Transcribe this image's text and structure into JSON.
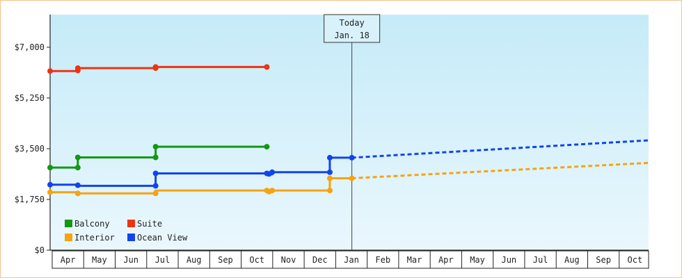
{
  "chart_data": {
    "type": "line",
    "title": "",
    "xlabel": "",
    "ylabel": "",
    "ylim": [
      0,
      7000
    ],
    "y_ticks": [
      "$0",
      "$1,750",
      "$3,500",
      "$5,250",
      "$7,000"
    ],
    "y_tick_values": [
      0,
      1750,
      3500,
      5250,
      7000
    ],
    "x_tick_labels": [
      "Apr",
      "May",
      "Jun",
      "Jul",
      "Aug",
      "Sep",
      "Oct",
      "Nov",
      "Dec",
      "Jan",
      "Feb",
      "Mar",
      "Apr",
      "May",
      "Jun",
      "Jul",
      "Aug",
      "Sep",
      "Oct"
    ],
    "x_range_months": [
      0,
      19
    ],
    "today_marker": {
      "line1": "Today",
      "line2": "Jan. 18",
      "x_month": 9.58
    },
    "background_gradient": [
      "#c5ebf8",
      "#eaf7fd"
    ],
    "legend_placement": "bottom-left",
    "series": [
      {
        "name": "Balcony",
        "color": "#119911",
        "style": "solid",
        "points": [
          [
            0.0,
            2850
          ],
          [
            0.88,
            2850
          ],
          [
            0.88,
            3200
          ],
          [
            3.35,
            3200
          ],
          [
            3.35,
            3570
          ],
          [
            6.88,
            3570
          ]
        ],
        "markers": [
          [
            0.0,
            2850
          ],
          [
            0.88,
            2850
          ],
          [
            0.88,
            3200
          ],
          [
            3.35,
            3200
          ],
          [
            3.35,
            3570
          ],
          [
            6.88,
            3570
          ]
        ]
      },
      {
        "name": "Suite",
        "color": "#ee3311",
        "style": "solid",
        "points": [
          [
            0.0,
            6180
          ],
          [
            0.88,
            6180
          ],
          [
            0.88,
            6280
          ],
          [
            3.35,
            6280
          ],
          [
            3.35,
            6320
          ],
          [
            6.88,
            6320
          ]
        ],
        "markers": [
          [
            0.0,
            6180
          ],
          [
            0.88,
            6200
          ],
          [
            0.88,
            6280
          ],
          [
            3.35,
            6280
          ],
          [
            3.35,
            6320
          ],
          [
            6.88,
            6320
          ]
        ]
      },
      {
        "name": "Interior",
        "color": "#f5a313",
        "style": "solid",
        "points": [
          [
            0.0,
            2000
          ],
          [
            0.88,
            2000
          ],
          [
            0.88,
            1960
          ],
          [
            3.35,
            1960
          ],
          [
            3.35,
            2060
          ],
          [
            6.88,
            2060
          ],
          [
            6.88,
            2000
          ],
          [
            7.05,
            2000
          ],
          [
            7.05,
            2060
          ],
          [
            8.88,
            2060
          ],
          [
            8.88,
            2480
          ],
          [
            9.58,
            2480
          ]
        ],
        "markers": [
          [
            0.0,
            2000
          ],
          [
            0.88,
            1960
          ],
          [
            3.35,
            1960
          ],
          [
            6.88,
            2060
          ],
          [
            6.95,
            2020
          ],
          [
            7.05,
            2060
          ],
          [
            8.88,
            2060
          ],
          [
            8.88,
            2480
          ],
          [
            9.58,
            2480
          ]
        ]
      },
      {
        "name": "Ocean View",
        "color": "#1144ee",
        "style": "solid",
        "points": [
          [
            0.0,
            2260
          ],
          [
            0.88,
            2260
          ],
          [
            0.88,
            2220
          ],
          [
            3.35,
            2220
          ],
          [
            3.35,
            2650
          ],
          [
            6.88,
            2650
          ],
          [
            6.88,
            2620
          ],
          [
            7.05,
            2620
          ],
          [
            7.05,
            2690
          ],
          [
            8.88,
            2690
          ],
          [
            8.88,
            3190
          ],
          [
            9.58,
            3190
          ]
        ],
        "markers": [
          [
            0.0,
            2260
          ],
          [
            0.88,
            2240
          ],
          [
            3.35,
            2220
          ],
          [
            3.35,
            2650
          ],
          [
            6.88,
            2650
          ],
          [
            6.95,
            2630
          ],
          [
            7.05,
            2690
          ],
          [
            8.88,
            2690
          ],
          [
            8.88,
            3190
          ],
          [
            9.58,
            3190
          ]
        ]
      },
      {
        "name": "Ocean View forecast",
        "color": "#1144ee",
        "style": "dashed",
        "points": [
          [
            9.58,
            3190
          ],
          [
            19.0,
            3790
          ]
        ]
      },
      {
        "name": "Interior forecast",
        "color": "#f5a313",
        "style": "dashed",
        "points": [
          [
            9.58,
            2480
          ],
          [
            19.0,
            3010
          ]
        ]
      }
    ],
    "legend": [
      {
        "label": "Balcony",
        "color": "#119911"
      },
      {
        "label": "Suite",
        "color": "#ee3311"
      },
      {
        "label": "Interior",
        "color": "#f5a313"
      },
      {
        "label": "Ocean View",
        "color": "#1144ee"
      }
    ]
  }
}
